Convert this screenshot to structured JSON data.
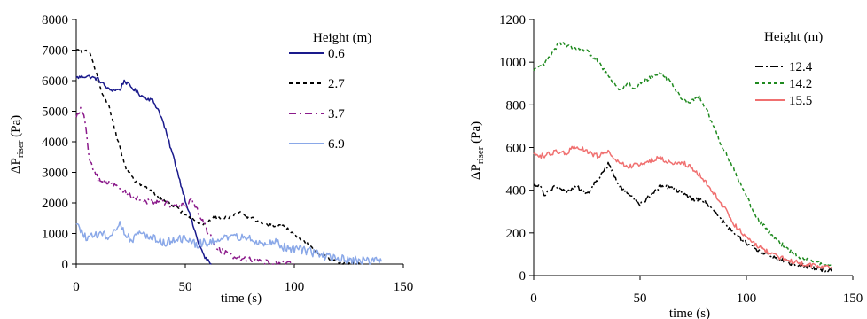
{
  "chart_data": [
    {
      "type": "line",
      "xlabel": "time (s)",
      "ylabel": "ΔP",
      "ylabel_sub": "riser",
      "ylabel_unit": " (Pa)",
      "xlim": [
        0,
        150
      ],
      "ylim": [
        0,
        8000
      ],
      "xticks": [
        0,
        50,
        100,
        150
      ],
      "yticks": [
        0,
        1000,
        2000,
        3000,
        4000,
        5000,
        6000,
        7000,
        8000
      ],
      "legend_title": "Height (m)",
      "legend_position": "top-right",
      "grid": false,
      "series": [
        {
          "name": "0.6",
          "color": "#1a1a8c",
          "dash": "solid",
          "noise": 60,
          "points": [
            [
              0,
              6100
            ],
            [
              5,
              6150
            ],
            [
              10,
              6050
            ],
            [
              15,
              5700
            ],
            [
              20,
              5700
            ],
            [
              22,
              6000
            ],
            [
              25,
              5800
            ],
            [
              30,
              5500
            ],
            [
              35,
              5350
            ],
            [
              38,
              5000
            ],
            [
              40,
              4600
            ],
            [
              42,
              4100
            ],
            [
              45,
              3400
            ],
            [
              48,
              2600
            ],
            [
              50,
              2100
            ],
            [
              53,
              1400
            ],
            [
              56,
              700
            ],
            [
              59,
              200
            ],
            [
              62,
              0
            ]
          ]
        },
        {
          "name": "2.7",
          "color": "#000000",
          "dash": "4,4",
          "noise": 60,
          "points": [
            [
              0,
              7000
            ],
            [
              3,
              6950
            ],
            [
              6,
              6950
            ],
            [
              9,
              6300
            ],
            [
              12,
              5500
            ],
            [
              15,
              5200
            ],
            [
              18,
              4300
            ],
            [
              20,
              3800
            ],
            [
              23,
              3100
            ],
            [
              27,
              2700
            ],
            [
              32,
              2500
            ],
            [
              38,
              2200
            ],
            [
              45,
              1900
            ],
            [
              52,
              1500
            ],
            [
              58,
              1300
            ],
            [
              62,
              1500
            ],
            [
              70,
              1500
            ],
            [
              75,
              1700
            ],
            [
              80,
              1500
            ],
            [
              88,
              1300
            ],
            [
              95,
              1250
            ],
            [
              100,
              1000
            ],
            [
              105,
              700
            ],
            [
              110,
              400
            ],
            [
              115,
              200
            ],
            [
              120,
              80
            ],
            [
              125,
              20
            ],
            [
              130,
              0
            ]
          ]
        },
        {
          "name": "3.7",
          "color": "#8b1a8b",
          "dash": "8,4,2,4",
          "noise": 90,
          "points": [
            [
              0,
              4800
            ],
            [
              2,
              5100
            ],
            [
              4,
              4700
            ],
            [
              6,
              3500
            ],
            [
              8,
              3000
            ],
            [
              10,
              2800
            ],
            [
              13,
              2700
            ],
            [
              16,
              2600
            ],
            [
              20,
              2500
            ],
            [
              25,
              2200
            ],
            [
              30,
              2100
            ],
            [
              35,
              2000
            ],
            [
              40,
              2000
            ],
            [
              45,
              1900
            ],
            [
              50,
              1900
            ],
            [
              53,
              2100
            ],
            [
              56,
              1700
            ],
            [
              60,
              1100
            ],
            [
              65,
              500
            ],
            [
              70,
              300
            ],
            [
              75,
              200
            ],
            [
              80,
              150
            ],
            [
              85,
              100
            ],
            [
              90,
              50
            ],
            [
              95,
              30
            ],
            [
              100,
              0
            ]
          ]
        },
        {
          "name": "6.9",
          "color": "#8aa8e8",
          "dash": "solid",
          "noise": 140,
          "points": [
            [
              0,
              1300
            ],
            [
              5,
              800
            ],
            [
              10,
              1000
            ],
            [
              15,
              900
            ],
            [
              20,
              1300
            ],
            [
              25,
              800
            ],
            [
              30,
              1000
            ],
            [
              35,
              900
            ],
            [
              40,
              700
            ],
            [
              45,
              800
            ],
            [
              50,
              800
            ],
            [
              55,
              650
            ],
            [
              60,
              700
            ],
            [
              65,
              850
            ],
            [
              70,
              800
            ],
            [
              75,
              900
            ],
            [
              80,
              800
            ],
            [
              85,
              700
            ],
            [
              90,
              750
            ],
            [
              95,
              550
            ],
            [
              100,
              500
            ],
            [
              105,
              450
            ],
            [
              110,
              350
            ],
            [
              115,
              250
            ],
            [
              120,
              200
            ],
            [
              125,
              150
            ],
            [
              130,
              120
            ],
            [
              135,
              100
            ],
            [
              140,
              80
            ]
          ]
        }
      ]
    },
    {
      "type": "line",
      "xlabel": "time (s)",
      "ylabel": "ΔP",
      "ylabel_sub": "riser",
      "ylabel_unit": " (Pa)",
      "xlim": [
        0,
        150
      ],
      "ylim": [
        0,
        1200
      ],
      "xticks": [
        0,
        50,
        100,
        150
      ],
      "yticks": [
        0,
        200,
        400,
        600,
        800,
        1000,
        1200
      ],
      "legend_title": "Height (m)",
      "legend_position": "top-right",
      "grid": false,
      "series": [
        {
          "name": "12.4",
          "color": "#000000",
          "dash": "9,3,2,3",
          "noise": 10,
          "points": [
            [
              0,
              420
            ],
            [
              3,
              430
            ],
            [
              5,
              380
            ],
            [
              10,
              420
            ],
            [
              15,
              390
            ],
            [
              20,
              420
            ],
            [
              25,
              380
            ],
            [
              30,
              450
            ],
            [
              35,
              520
            ],
            [
              38,
              470
            ],
            [
              40,
              420
            ],
            [
              45,
              380
            ],
            [
              50,
              330
            ],
            [
              55,
              380
            ],
            [
              60,
              420
            ],
            [
              65,
              410
            ],
            [
              70,
              390
            ],
            [
              75,
              360
            ],
            [
              80,
              350
            ],
            [
              85,
              300
            ],
            [
              90,
              240
            ],
            [
              95,
              190
            ],
            [
              100,
              150
            ],
            [
              105,
              120
            ],
            [
              110,
              100
            ],
            [
              115,
              80
            ],
            [
              120,
              60
            ],
            [
              125,
              50
            ],
            [
              130,
              40
            ],
            [
              135,
              30
            ],
            [
              140,
              20
            ]
          ]
        },
        {
          "name": "14.2",
          "color": "#1f8a1f",
          "dash": "4,3",
          "noise": 10,
          "points": [
            [
              0,
              960
            ],
            [
              5,
              990
            ],
            [
              10,
              1060
            ],
            [
              12,
              1090
            ],
            [
              15,
              1080
            ],
            [
              20,
              1060
            ],
            [
              25,
              1050
            ],
            [
              30,
              1010
            ],
            [
              35,
              940
            ],
            [
              40,
              870
            ],
            [
              45,
              900
            ],
            [
              48,
              870
            ],
            [
              50,
              900
            ],
            [
              55,
              930
            ],
            [
              60,
              950
            ],
            [
              65,
              900
            ],
            [
              68,
              850
            ],
            [
              72,
              810
            ],
            [
              75,
              820
            ],
            [
              78,
              840
            ],
            [
              82,
              760
            ],
            [
              88,
              620
            ],
            [
              93,
              520
            ],
            [
              97,
              430
            ],
            [
              100,
              370
            ],
            [
              105,
              270
            ],
            [
              110,
              210
            ],
            [
              115,
              160
            ],
            [
              120,
              120
            ],
            [
              125,
              90
            ],
            [
              130,
              70
            ],
            [
              135,
              55
            ],
            [
              140,
              45
            ]
          ]
        },
        {
          "name": "15.5",
          "color": "#f07070",
          "dash": "solid",
          "noise": 12,
          "points": [
            [
              0,
              570
            ],
            [
              5,
              560
            ],
            [
              10,
              580
            ],
            [
              15,
              570
            ],
            [
              20,
              610
            ],
            [
              25,
              580
            ],
            [
              30,
              560
            ],
            [
              35,
              580
            ],
            [
              40,
              530
            ],
            [
              45,
              510
            ],
            [
              50,
              520
            ],
            [
              55,
              540
            ],
            [
              60,
              550
            ],
            [
              65,
              520
            ],
            [
              70,
              530
            ],
            [
              75,
              500
            ],
            [
              80,
              450
            ],
            [
              85,
              380
            ],
            [
              90,
              310
            ],
            [
              95,
              230
            ],
            [
              100,
              180
            ],
            [
              105,
              140
            ],
            [
              110,
              110
            ],
            [
              115,
              90
            ],
            [
              120,
              70
            ],
            [
              125,
              60
            ],
            [
              130,
              50
            ],
            [
              135,
              45
            ],
            [
              140,
              40
            ]
          ]
        }
      ]
    }
  ]
}
